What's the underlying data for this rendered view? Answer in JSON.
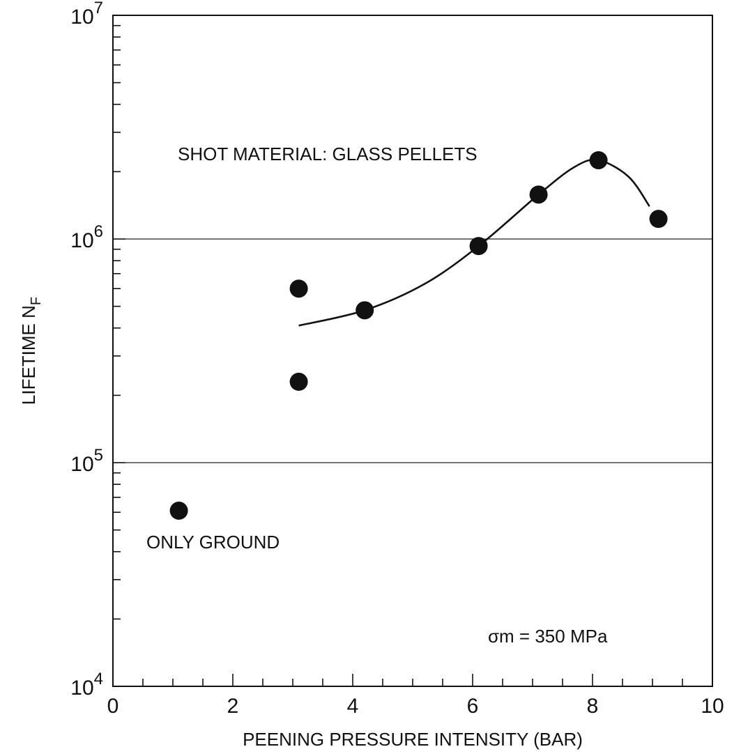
{
  "chart_data": {
    "type": "scatter",
    "title": "",
    "xlabel": "PEENING PRESSURE INTENSITY (BAR)",
    "ylabel": "LIFETIME N",
    "ylabel_sub": "F",
    "xlim": [
      0,
      10
    ],
    "ylim": [
      10000,
      10000000
    ],
    "yscale": "log",
    "grid": "horizontal lines at decades",
    "x_ticks": [
      "0",
      "2",
      "4",
      "6",
      "8",
      "10"
    ],
    "y_ticks": [
      {
        "base": "10",
        "exp": "4"
      },
      {
        "base": "10",
        "exp": "5"
      },
      {
        "base": "10",
        "exp": "6"
      },
      {
        "base": "10",
        "exp": "7"
      }
    ],
    "series": [
      {
        "points": [
          {
            "x": 1.1,
            "y": 61000
          },
          {
            "x": 3.1,
            "y": 600000
          },
          {
            "x": 3.1,
            "y": 230000
          },
          {
            "x": 4.2,
            "y": 480000
          },
          {
            "x": 6.1,
            "y": 930000
          },
          {
            "x": 7.1,
            "y": 1580000
          },
          {
            "x": 8.1,
            "y": 2250000
          },
          {
            "x": 9.1,
            "y": 1230000
          }
        ]
      }
    ],
    "fit_curve": [
      {
        "x": 3.1,
        "y": 410000
      },
      {
        "x": 4.2,
        "y": 480000
      },
      {
        "x": 5.2,
        "y": 630000
      },
      {
        "x": 6.1,
        "y": 930000
      },
      {
        "x": 7.1,
        "y": 1580000
      },
      {
        "x": 7.7,
        "y": 2100000
      },
      {
        "x": 8.1,
        "y": 2250000
      },
      {
        "x": 8.6,
        "y": 1900000
      },
      {
        "x": 8.95,
        "y": 1400000
      }
    ],
    "annotations": {
      "shot_material": "SHOT MATERIAL: GLASS PELLETS",
      "only_ground": "ONLY GROUND",
      "stress": "σm = 350 MPa"
    }
  }
}
